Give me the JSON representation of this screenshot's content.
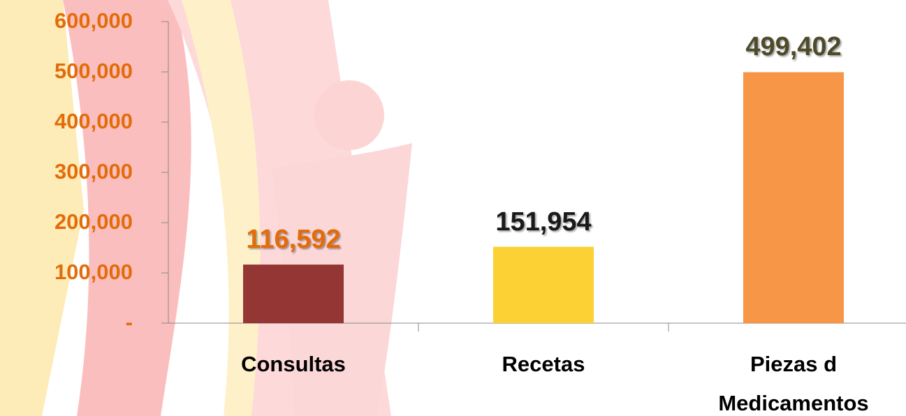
{
  "chart_data": {
    "type": "bar",
    "categories": [
      "Consultas",
      "Recetas",
      "Piezas d Medicamentos"
    ],
    "values": [
      116592,
      151954,
      499402
    ],
    "value_labels": [
      "116,592",
      "151,954",
      "499,402"
    ],
    "colors": [
      "#943634",
      "#fcd133",
      "#f79646"
    ],
    "label_colors": [
      "#e36c0a",
      "#1a1a1a",
      "#4f4a2a"
    ],
    "ylim": [
      0,
      600000
    ],
    "yticks": [
      {
        "value": 0,
        "label": "-"
      },
      {
        "value": 100000,
        "label": "100,000"
      },
      {
        "value": 200000,
        "label": "200,000"
      },
      {
        "value": 300000,
        "label": "300,000"
      },
      {
        "value": 400000,
        "label": "400,000"
      },
      {
        "value": 500000,
        "label": "500,000"
      },
      {
        "value": 600000,
        "label": "600,000"
      }
    ]
  }
}
